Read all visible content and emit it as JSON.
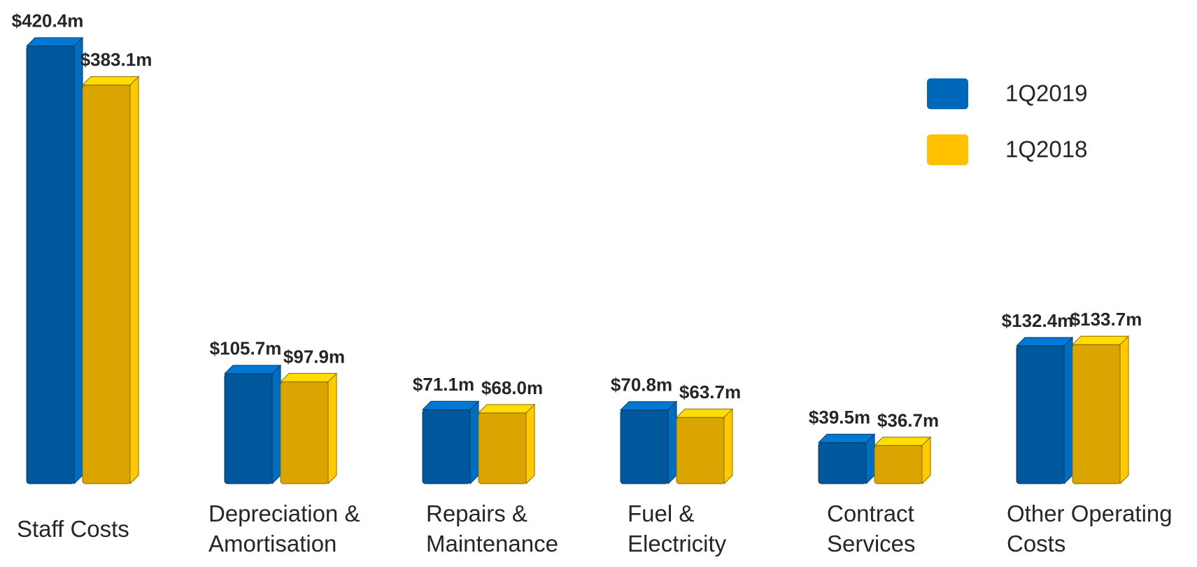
{
  "chart_data": {
    "type": "bar",
    "categories": [
      "Staff Costs",
      "Depreciation &\nAmortisation",
      "Repairs &\nMaintenance",
      "Fuel &\nElectricity",
      "Contract\nServices",
      "Other Operating\nCosts"
    ],
    "series": [
      {
        "name": "1Q2019",
        "color": "#0068b8",
        "values": [
          420.4,
          105.7,
          71.1,
          70.8,
          39.5,
          132.4
        ],
        "value_labels": [
          "$420.4m",
          "$105.7m",
          "$71.1m",
          "$70.8m",
          "$39.5m",
          "$132.4m"
        ]
      },
      {
        "name": "1Q2018",
        "color": "#ffc000",
        "values": [
          383.1,
          97.9,
          68.0,
          63.7,
          36.7,
          133.7
        ],
        "value_labels": [
          "$383.1m",
          "$97.9m",
          "$68.0m",
          "$63.7m",
          "$36.7m",
          "$133.7m"
        ]
      }
    ],
    "legend": "top-right"
  }
}
